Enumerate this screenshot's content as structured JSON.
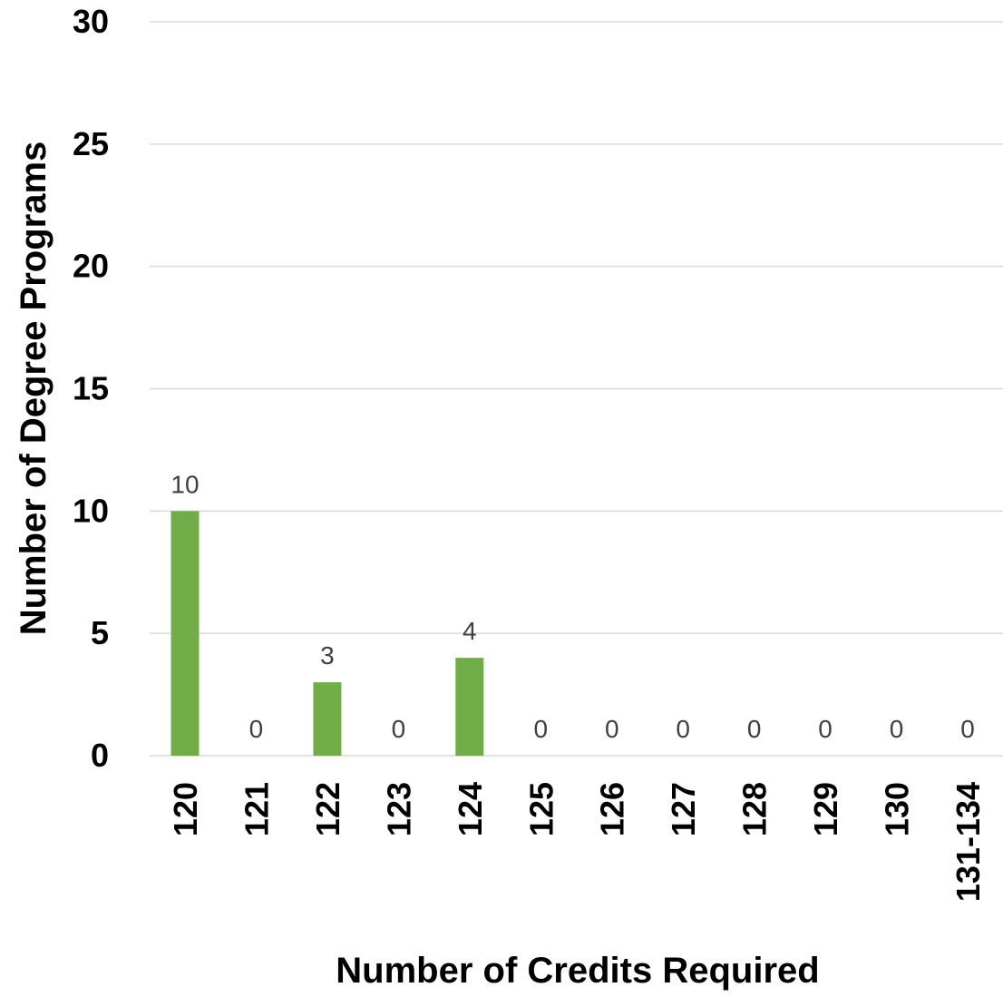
{
  "chart_data": {
    "type": "bar",
    "categories": [
      "120",
      "121",
      "122",
      "123",
      "124",
      "125",
      "126",
      "127",
      "128",
      "129",
      "130",
      "131-134"
    ],
    "values": [
      10,
      0,
      3,
      0,
      4,
      0,
      0,
      0,
      0,
      0,
      0,
      0
    ],
    "data_labels": [
      "10",
      "0",
      "3",
      "0",
      "4",
      "0",
      "0",
      "0",
      "0",
      "0",
      "0",
      "0"
    ],
    "title": "",
    "xlabel": "Number of Credits Required",
    "ylabel": "Number of Degree Programs",
    "ylim": [
      0,
      30
    ],
    "yticks": [
      "0",
      "5",
      "10",
      "15",
      "20",
      "25",
      "30"
    ],
    "grid": true,
    "legend": "none",
    "bar_color": "#70ad47"
  }
}
